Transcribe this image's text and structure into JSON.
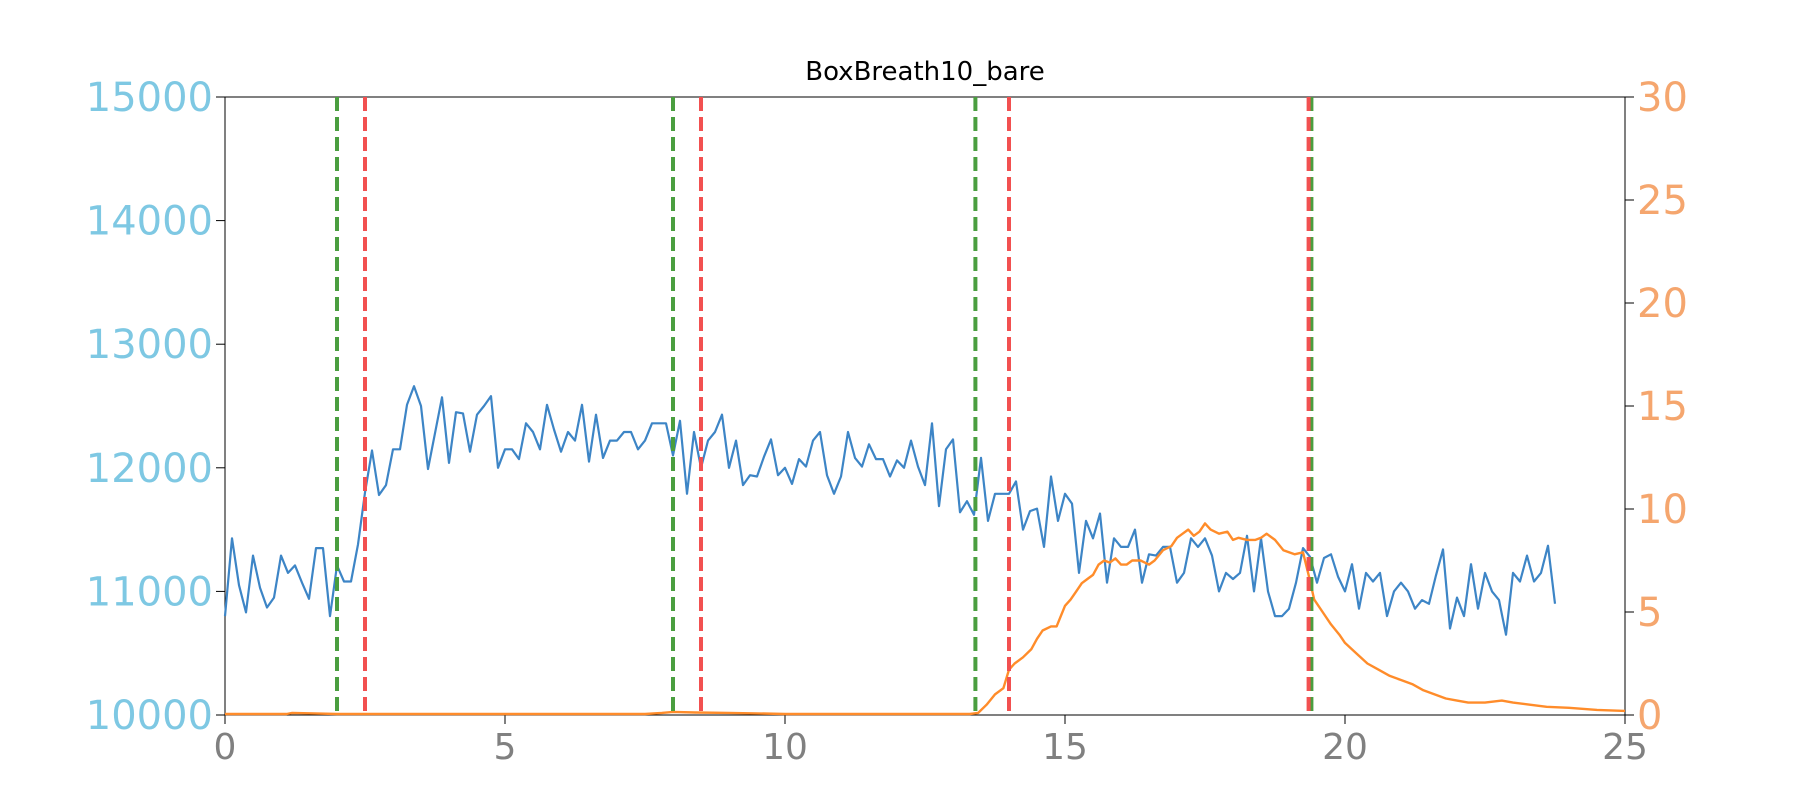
{
  "chart_data": {
    "type": "line",
    "title": "BoxBreath10_bare",
    "xlabel": "",
    "ylabel": "",
    "y2label": "",
    "xlim": [
      0,
      25
    ],
    "ylim": [
      10000,
      15000
    ],
    "y2lim": [
      0,
      30
    ],
    "grid": false,
    "x_ticks": [
      "0",
      "5",
      "10",
      "15",
      "20",
      "25"
    ],
    "y_ticks": [
      "10000",
      "11000",
      "12000",
      "13000",
      "14000",
      "15000"
    ],
    "y2_ticks": [
      "0",
      "5",
      "10",
      "15",
      "20",
      "25",
      "30"
    ],
    "colors": {
      "primary_series": "#3d85c6",
      "secondary_series": "#ff8c2a",
      "left_axis_text": "#7ec8e3",
      "right_axis_text": "#f5a66e",
      "x_axis_text": "#808080",
      "onset_marker": "#4a9e3f",
      "offset_marker": "#f25050"
    },
    "series": [
      {
        "axis": "left",
        "values": [
          10800,
          11430,
          11050,
          10830,
          11290,
          11030,
          10870,
          10950,
          11290,
          11150,
          11210,
          11070,
          10940,
          11350,
          11350,
          10800,
          11210,
          11080,
          11080,
          11380,
          11800,
          12140,
          11780,
          11860,
          12150,
          12150,
          12510,
          12660,
          12500,
          11990,
          12280,
          12570,
          12040,
          12450,
          12440,
          12130,
          12430,
          12500,
          12580,
          12000,
          12150,
          12150,
          12070,
          12360,
          12290,
          12150,
          12510,
          12310,
          12130,
          12290,
          12220,
          12510,
          12050,
          12430,
          12080,
          12220,
          12220,
          12290,
          12290,
          12150,
          12220,
          12360,
          12360,
          12360,
          12100,
          12380,
          11790,
          12290,
          12000,
          12220,
          12290,
          12430,
          12000,
          12220,
          11860,
          11940,
          11930,
          12090,
          12230,
          11940,
          12000,
          11870,
          12070,
          12010,
          12220,
          12290,
          11940,
          11790,
          11930,
          12290,
          12080,
          12010,
          12190,
          12070,
          12070,
          11930,
          12060,
          12000,
          12220,
          12010,
          11860,
          12360,
          11690,
          12150,
          12230,
          11640,
          11730,
          11620,
          12080,
          11570,
          11790,
          11790,
          11790,
          11890,
          11500,
          11650,
          11670,
          11360,
          11930,
          11570,
          11790,
          11710,
          11150,
          11570,
          11430,
          11630,
          11070,
          11430,
          11360,
          11360,
          11500,
          11070,
          11300,
          11290,
          11360,
          11360,
          11070,
          11150,
          11430,
          11360,
          11430,
          11290,
          11000,
          11150,
          11100,
          11150,
          11450,
          11000,
          11430,
          11000,
          10800,
          10800,
          10860,
          11070,
          11350,
          11280,
          11070,
          11270,
          11300,
          11120,
          11000,
          11220,
          10860,
          11150,
          11080,
          11150,
          10800,
          11000,
          11070,
          11000,
          10860,
          10930,
          10900,
          11130,
          11340,
          10700,
          10950,
          10800,
          11220,
          10860,
          11150,
          11000,
          10930,
          10650,
          11150,
          11080,
          11290,
          11080,
          11150,
          11370,
          10900
        ],
        "x_start": 0,
        "x_step": 0.125
      },
      {
        "axis": "right",
        "points": [
          [
            0,
            0.05
          ],
          [
            1.1,
            0.05
          ],
          [
            1.2,
            0.1
          ],
          [
            1.6,
            0.08
          ],
          [
            2.0,
            0.05
          ],
          [
            2.5,
            0.05
          ],
          [
            4,
            0.05
          ],
          [
            6,
            0.05
          ],
          [
            7.5,
            0.05
          ],
          [
            7.8,
            0.1
          ],
          [
            8.0,
            0.15
          ],
          [
            8.4,
            0.12
          ],
          [
            9,
            0.1
          ],
          [
            9.5,
            0.08
          ],
          [
            10,
            0.05
          ],
          [
            12,
            0.05
          ],
          [
            13.3,
            0.05
          ],
          [
            13.45,
            0.1
          ],
          [
            13.6,
            0.5
          ],
          [
            13.75,
            1.0
          ],
          [
            13.9,
            1.3
          ],
          [
            14.0,
            2.2
          ],
          [
            14.1,
            2.5
          ],
          [
            14.25,
            2.8
          ],
          [
            14.4,
            3.2
          ],
          [
            14.5,
            3.7
          ],
          [
            14.6,
            4.1
          ],
          [
            14.75,
            4.3
          ],
          [
            14.85,
            4.3
          ],
          [
            15.0,
            5.3
          ],
          [
            15.1,
            5.6
          ],
          [
            15.2,
            6.0
          ],
          [
            15.3,
            6.4
          ],
          [
            15.4,
            6.6
          ],
          [
            15.5,
            6.8
          ],
          [
            15.6,
            7.3
          ],
          [
            15.7,
            7.5
          ],
          [
            15.8,
            7.4
          ],
          [
            15.9,
            7.6
          ],
          [
            16.0,
            7.3
          ],
          [
            16.1,
            7.3
          ],
          [
            16.2,
            7.5
          ],
          [
            16.35,
            7.5
          ],
          [
            16.5,
            7.3
          ],
          [
            16.6,
            7.5
          ],
          [
            16.75,
            8.0
          ],
          [
            16.9,
            8.2
          ],
          [
            17.0,
            8.6
          ],
          [
            17.1,
            8.8
          ],
          [
            17.2,
            9.0
          ],
          [
            17.3,
            8.7
          ],
          [
            17.4,
            8.9
          ],
          [
            17.5,
            9.3
          ],
          [
            17.6,
            9.0
          ],
          [
            17.75,
            8.8
          ],
          [
            17.9,
            8.9
          ],
          [
            18.0,
            8.5
          ],
          [
            18.1,
            8.6
          ],
          [
            18.25,
            8.5
          ],
          [
            18.4,
            8.5
          ],
          [
            18.5,
            8.6
          ],
          [
            18.6,
            8.8
          ],
          [
            18.75,
            8.5
          ],
          [
            18.9,
            8.0
          ],
          [
            19.0,
            7.9
          ],
          [
            19.1,
            7.8
          ],
          [
            19.25,
            7.9
          ],
          [
            19.35,
            6.8
          ],
          [
            19.45,
            5.6
          ],
          [
            19.6,
            5.0
          ],
          [
            19.75,
            4.4
          ],
          [
            19.9,
            3.9
          ],
          [
            20.0,
            3.5
          ],
          [
            20.2,
            3.0
          ],
          [
            20.4,
            2.5
          ],
          [
            20.6,
            2.2
          ],
          [
            20.8,
            1.9
          ],
          [
            21.0,
            1.7
          ],
          [
            21.2,
            1.5
          ],
          [
            21.4,
            1.2
          ],
          [
            21.6,
            1.0
          ],
          [
            21.8,
            0.8
          ],
          [
            22.0,
            0.7
          ],
          [
            22.2,
            0.6
          ],
          [
            22.5,
            0.6
          ],
          [
            22.8,
            0.7
          ],
          [
            23.0,
            0.6
          ],
          [
            23.3,
            0.5
          ],
          [
            23.6,
            0.4
          ],
          [
            24.0,
            0.35
          ],
          [
            24.5,
            0.25
          ],
          [
            25.0,
            0.2
          ]
        ]
      }
    ],
    "markers": [
      {
        "kind": "onset",
        "x": 2.0
      },
      {
        "kind": "offset",
        "x": 2.5
      },
      {
        "kind": "onset",
        "x": 8.0
      },
      {
        "kind": "offset",
        "x": 8.5
      },
      {
        "kind": "onset",
        "x": 13.4
      },
      {
        "kind": "offset",
        "x": 14.0
      },
      {
        "kind": "onset",
        "x": 19.4
      },
      {
        "kind": "offset",
        "x": 19.35
      }
    ]
  }
}
